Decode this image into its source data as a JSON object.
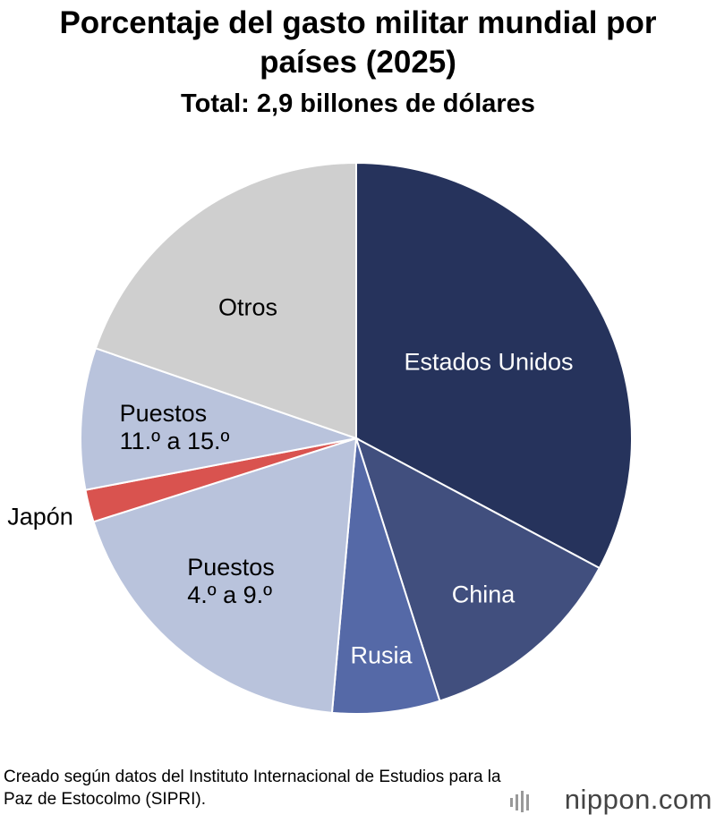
{
  "chart_data": {
    "type": "pie",
    "title": "Porcentaje del gasto militar mundial por países (2025)",
    "subtitle": "Total: 2,9 billones de dólares",
    "categories": [
      "Estados Unidos",
      "China",
      "Rusia",
      "Puestos\n4.º a 9.º",
      "Japón",
      "Puestos\n11.º a 15.º",
      "Otros"
    ],
    "values": [
      32.8,
      12.3,
      6.3,
      18.7,
      1.9,
      8.3,
      19.7
    ],
    "colors": [
      "#26335c",
      "#414f7e",
      "#5569a7",
      "#b9c3dc",
      "#d9534f",
      "#b9c3dc",
      "#cfcfcf"
    ],
    "source": "Creado según datos del Instituto Internacional de Estudios para la Paz de Estocolmo (SIPRI).",
    "logo": "nippon.com"
  }
}
